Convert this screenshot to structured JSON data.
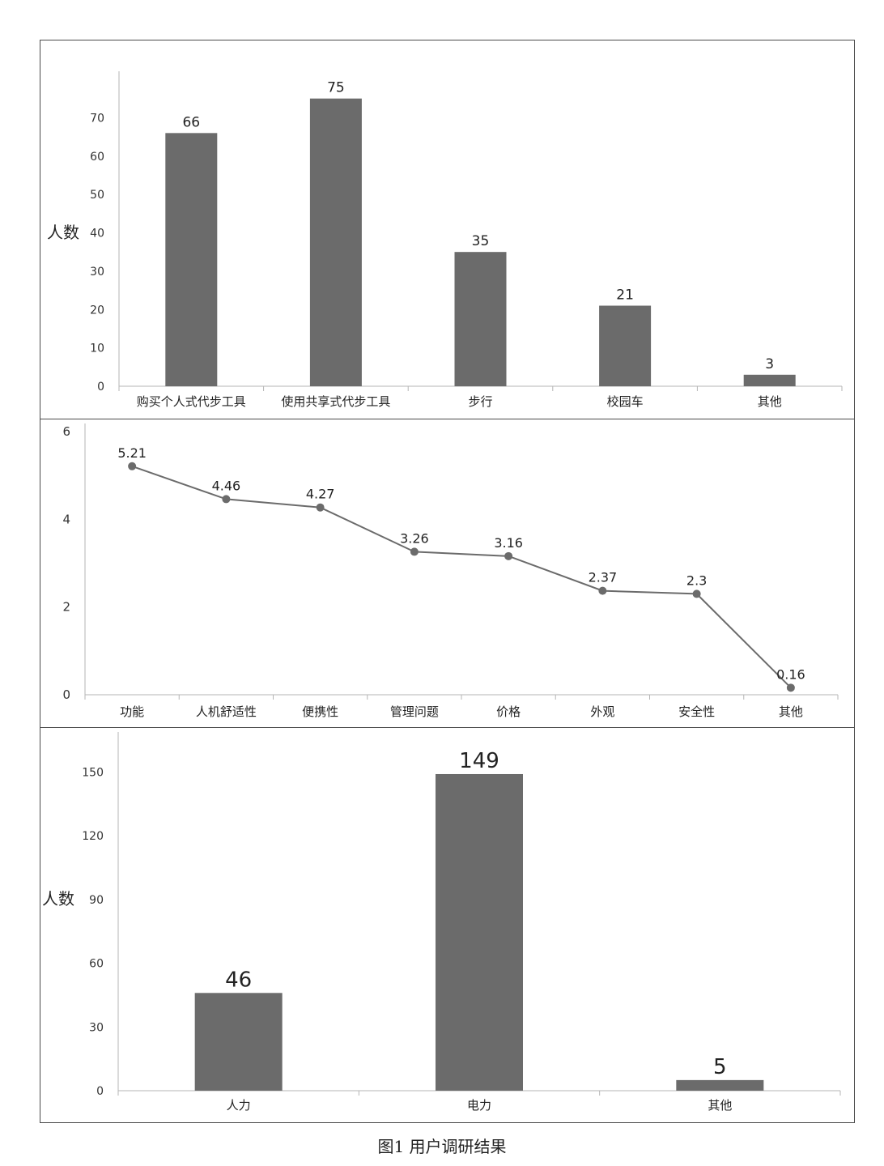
{
  "chart_data": [
    {
      "type": "bar",
      "title": "",
      "xlabel": "",
      "ylabel": "人数",
      "ylim": [
        0,
        80
      ],
      "yticks": [
        0,
        10,
        20,
        30,
        40,
        50,
        60,
        70
      ],
      "categories": [
        "购买个人式代步工具",
        "使用共享式代步工具",
        "步行",
        "校园车",
        "其他"
      ],
      "values": [
        66,
        75,
        35,
        21,
        3
      ],
      "data_labels": [
        "66",
        "75",
        "35",
        "21",
        "3"
      ],
      "color": "#6b6b6b"
    },
    {
      "type": "line",
      "title": "",
      "xlabel": "",
      "ylabel": "",
      "ylim": [
        0,
        6
      ],
      "yticks": [
        0,
        2,
        4,
        6
      ],
      "categories": [
        "功能",
        "人机舒适性",
        "便携性",
        "管理问题",
        "价格",
        "外观",
        "安全性",
        "其他"
      ],
      "values": [
        5.21,
        4.46,
        4.27,
        3.26,
        3.16,
        2.37,
        2.3,
        0.16
      ],
      "data_labels": [
        "5.21",
        "4.46",
        "4.27",
        "3.26",
        "3.16",
        "2.37",
        "2.3",
        "0.16"
      ],
      "color": "#6b6b6b"
    },
    {
      "type": "bar",
      "title": "",
      "xlabel": "",
      "ylabel": "人数",
      "ylim": [
        0,
        165
      ],
      "yticks": [
        0,
        30,
        60,
        90,
        120,
        150
      ],
      "categories": [
        "人力",
        "电力",
        "其他"
      ],
      "values": [
        46,
        149,
        5
      ],
      "data_labels": [
        "46",
        "149",
        "5"
      ],
      "color": "#6b6b6b"
    }
  ],
  "caption": "图1 用户调研结果"
}
